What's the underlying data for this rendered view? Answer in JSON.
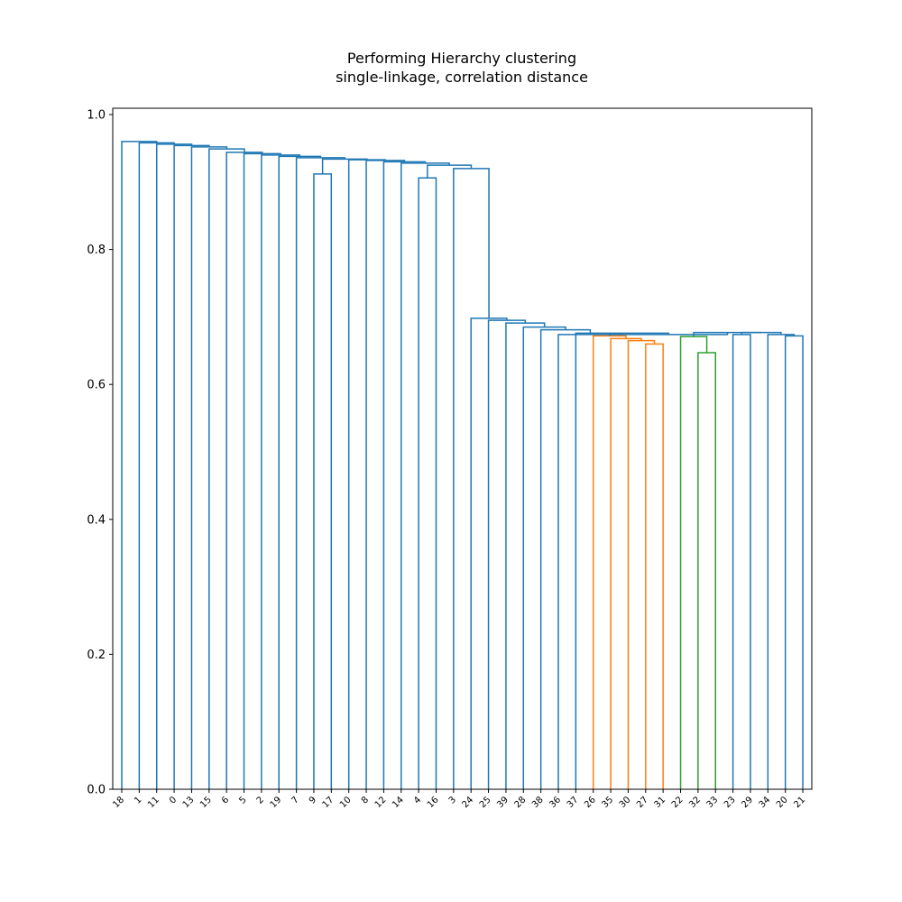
{
  "chart_data": {
    "type": "dendrogram",
    "title_line1": "Performing Hierarchy clustering",
    "title_line2": "single-linkage, correlation distance",
    "xlabel": "",
    "ylabel": "",
    "ylim": [
      0,
      1.0
    ],
    "yticks": [
      0.0,
      0.2,
      0.4,
      0.6,
      0.8,
      1.0
    ],
    "ytick_labels": [
      "0.0",
      "0.2",
      "0.4",
      "0.6",
      "0.8",
      "1.0"
    ],
    "grid": false,
    "leaves": [
      "18",
      "1",
      "11",
      "0",
      "13",
      "15",
      "6",
      "5",
      "2",
      "19",
      "7",
      "9",
      "17",
      "10",
      "8",
      "12",
      "14",
      "4",
      "16",
      "3",
      "24",
      "25",
      "39",
      "28",
      "38",
      "36",
      "37",
      "26",
      "35",
      "30",
      "27",
      "31",
      "22",
      "32",
      "33",
      "23",
      "29",
      "34",
      "20",
      "21"
    ],
    "colors": {
      "default": "#1f77b4",
      "cluster1": "#ff7f0e",
      "cluster2": "#2ca02c"
    },
    "links": [
      {
        "a": "27",
        "b": "31",
        "height": 0.66,
        "color": "cluster1"
      },
      {
        "a": "30",
        "b": "L0",
        "height": 0.665,
        "color": "cluster1"
      },
      {
        "a": "35",
        "b": "L1",
        "height": 0.668,
        "color": "cluster1"
      },
      {
        "a": "26",
        "b": "L2",
        "height": 0.672,
        "color": "cluster1"
      },
      {
        "a": "32",
        "b": "33",
        "height": 0.647,
        "color": "cluster2"
      },
      {
        "a": "22",
        "b": "L4",
        "height": 0.671,
        "color": "cluster2"
      },
      {
        "a": "20",
        "b": "21",
        "height": 0.672,
        "color": "default"
      },
      {
        "a": "34",
        "b": "L6",
        "height": 0.674,
        "color": "default"
      },
      {
        "a": "23",
        "b": "29",
        "height": 0.674,
        "color": "default"
      },
      {
        "a": "L8",
        "b": "L7",
        "height": 0.677,
        "color": "default"
      },
      {
        "a": "L5",
        "b": "L9",
        "height": 0.677,
        "color": "default"
      },
      {
        "a": "L3",
        "b": "L10",
        "height": 0.674,
        "color": "default"
      },
      {
        "a": "37",
        "b": "L11",
        "height": 0.676,
        "color": "default"
      },
      {
        "a": "36",
        "b": "L12",
        "height": 0.674,
        "color": "default"
      },
      {
        "a": "L13",
        "b": "L10",
        "height": 0.679,
        "color": "default",
        "skip": true
      },
      {
        "a": "38",
        "b": "L13",
        "height": 0.681,
        "color": "default"
      },
      {
        "a": "28",
        "b": "L15",
        "height": 0.685,
        "color": "default"
      },
      {
        "a": "39",
        "b": "L16",
        "height": 0.691,
        "color": "default"
      },
      {
        "a": "25",
        "b": "L17",
        "height": 0.695,
        "color": "default"
      },
      {
        "a": "24",
        "b": "L18",
        "height": 0.698,
        "color": "default"
      },
      {
        "a": "3",
        "b": "L19",
        "height": 0.92,
        "color": "default"
      },
      {
        "a": "4",
        "b": "16",
        "height": 0.906,
        "color": "default"
      },
      {
        "a": "L21",
        "b": "L20",
        "height": 0.925,
        "color": "default"
      },
      {
        "a": "14",
        "b": "L22",
        "height": 0.928,
        "color": "default"
      },
      {
        "a": "12",
        "b": "L23",
        "height": 0.93,
        "color": "default"
      },
      {
        "a": "8",
        "b": "L24",
        "height": 0.932,
        "color": "default"
      },
      {
        "a": "10",
        "b": "L25",
        "height": 0.933,
        "color": "default"
      },
      {
        "a": "9",
        "b": "17",
        "height": 0.912,
        "color": "default"
      },
      {
        "a": "L27",
        "b": "L26",
        "height": 0.934,
        "color": "default"
      },
      {
        "a": "7",
        "b": "L28",
        "height": 0.936,
        "color": "default"
      },
      {
        "a": "19",
        "b": "L29",
        "height": 0.938,
        "color": "default"
      },
      {
        "a": "2",
        "b": "L30",
        "height": 0.94,
        "color": "default"
      },
      {
        "a": "5",
        "b": "L31",
        "height": 0.942,
        "color": "default"
      },
      {
        "a": "6",
        "b": "L32",
        "height": 0.944,
        "color": "default"
      },
      {
        "a": "15",
        "b": "L33",
        "height": 0.949,
        "color": "default"
      },
      {
        "a": "13",
        "b": "L34",
        "height": 0.952,
        "color": "default"
      },
      {
        "a": "0",
        "b": "L35",
        "height": 0.954,
        "color": "default"
      },
      {
        "a": "11",
        "b": "L36",
        "height": 0.956,
        "color": "default"
      },
      {
        "a": "1",
        "b": "L37",
        "height": 0.958,
        "color": "default"
      },
      {
        "a": "18",
        "b": "L38",
        "height": 0.96,
        "color": "default"
      }
    ]
  }
}
